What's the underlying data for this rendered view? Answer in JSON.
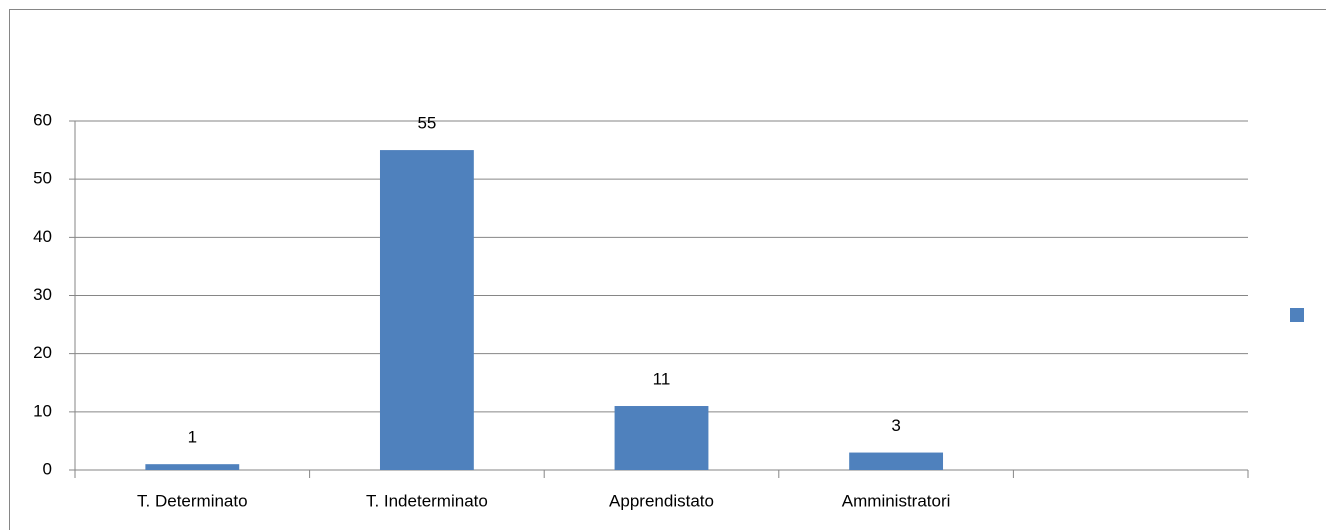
{
  "chart_data": {
    "type": "bar",
    "categories": [
      "T. Determinato",
      "T. Indeterminato",
      "Apprendistato",
      "Amministratori",
      null
    ],
    "series": [
      {
        "color": "#4f81bd",
        "values": [
          1,
          55,
          11,
          3,
          null
        ]
      }
    ],
    "ylim": [
      0,
      60
    ],
    "yticks": [
      0,
      10,
      20,
      30,
      40,
      50,
      60
    ],
    "grid": true,
    "legend": "right"
  }
}
